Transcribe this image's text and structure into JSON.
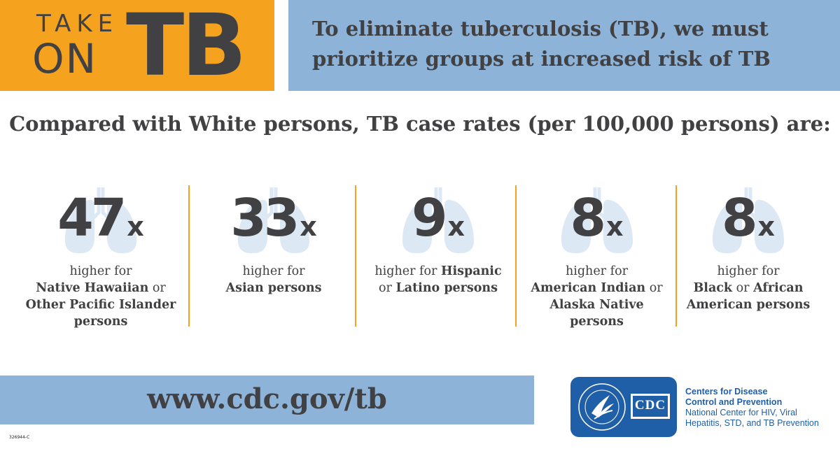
{
  "logo": {
    "take": "TAKE",
    "on": "ON",
    "tb": "TB"
  },
  "headline": "To eliminate tuberculosis (TB), we must prioritize groups at increased risk of TB",
  "comparison_title": "Compared with White persons, TB case rates (per 100,000 persons) are:",
  "stats": [
    {
      "value": "47",
      "suffix": "x",
      "prefix_text": "higher for",
      "bold_1": "Native Hawaiian",
      "mid_1": " or ",
      "bold_2": "Other Pacific Islander",
      "mid_2": "",
      "bold_3": "persons"
    },
    {
      "value": "33",
      "suffix": "x",
      "prefix_text": "higher for",
      "bold_1": "Asian persons"
    },
    {
      "value": "9",
      "suffix": "x",
      "prefix_text": "higher for ",
      "bold_1": "Hispanic",
      "mid_1": "or ",
      "bold_2": "Latino persons"
    },
    {
      "value": "8",
      "suffix": "x",
      "prefix_text": "higher for",
      "bold_1": "American Indian",
      "mid_1": " or",
      "bold_2": "Alaska Native persons"
    },
    {
      "value": "8",
      "suffix": "x",
      "prefix_text": "higher for",
      "bold_1": "Black",
      "mid_1": " or ",
      "bold_2": "African",
      "bold_3": "American persons"
    }
  ],
  "url": "www.cdc.gov/tb",
  "code": "326944-C",
  "cdc": {
    "badge_text": "CDC",
    "line1": "Centers for Disease",
    "line2": "Control and Prevention",
    "line3": "National Center for HIV, Viral",
    "line4": "Hepatitis, STD, and TB Prevention"
  },
  "colors": {
    "orange": "#f5a31f",
    "blue": "#8db3d9",
    "text": "#414042",
    "lung": "#dce8f3",
    "cdc_blue": "#1f5fa8"
  }
}
